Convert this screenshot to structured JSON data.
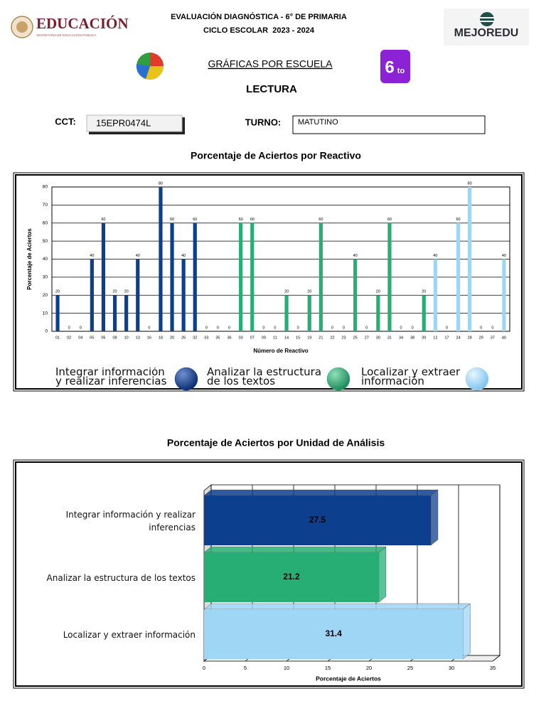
{
  "header": {
    "logo_left": "EDUCACIÓN",
    "logo_left_sub": "SECRETARÍA DE EDUCACIÓN PÚBLICA",
    "title": "EVALUACIÓN DIAGNÓSTICA - 6° DE PRIMARIA",
    "subtitle": "CICLO ESCOLAR  2023 - 2024",
    "logo_right": "MEJOREDU",
    "section": "GRÁFICAS POR ESCUELA",
    "subject": "LECTURA",
    "grade": "6",
    "grade_suffix": "to"
  },
  "form": {
    "cct_label": "CCT:",
    "cct": "15EPR0474L",
    "turno_label": "TURNO:",
    "turno": "MATUTINO"
  },
  "chart_data": [
    {
      "type": "bar",
      "title": "Porcentaje de Aciertos por Reactivo",
      "xlabel": "Número de Reactivo",
      "ylabel": "Porcentaje de Aciertos",
      "categories": [
        "01",
        "02",
        "04",
        "05",
        "06",
        "08",
        "10",
        "13",
        "16",
        "18",
        "20",
        "26",
        "32",
        "33",
        "35",
        "36",
        "03",
        "07",
        "09",
        "11",
        "14",
        "15",
        "19",
        "21",
        "22",
        "23",
        "25",
        "27",
        "30",
        "31",
        "34",
        "38",
        "39",
        "12",
        "17",
        "24",
        "28",
        "29",
        "37",
        "40"
      ],
      "series": [
        {
          "name": "Integrar información y realizar inferencias",
          "color": "#0d3f8f",
          "values": [
            20,
            0,
            0,
            40,
            60,
            20,
            20,
            40,
            0,
            80,
            60,
            40,
            60,
            0,
            0,
            0,
            null,
            null,
            null,
            null,
            null,
            null,
            null,
            null,
            null,
            null,
            null,
            null,
            null,
            null,
            null,
            null,
            null,
            null,
            null,
            null,
            null,
            null,
            null,
            null
          ]
        },
        {
          "name": "Analizar la estructura de los textos",
          "color": "#27ae74",
          "values": [
            null,
            null,
            null,
            null,
            null,
            null,
            null,
            null,
            null,
            null,
            null,
            null,
            null,
            null,
            null,
            null,
            60,
            60,
            0,
            0,
            20,
            0,
            20,
            60,
            0,
            0,
            40,
            0,
            20,
            60,
            0,
            0,
            20,
            null,
            null,
            null,
            null,
            null,
            null,
            null
          ]
        },
        {
          "name": "Localizar y extraer información",
          "color": "#9fd5f5",
          "values": [
            null,
            null,
            null,
            null,
            null,
            null,
            null,
            null,
            null,
            null,
            null,
            null,
            null,
            null,
            null,
            null,
            null,
            null,
            null,
            null,
            null,
            null,
            null,
            null,
            null,
            null,
            null,
            null,
            null,
            null,
            null,
            null,
            null,
            40,
            0,
            60,
            80,
            0,
            0,
            40
          ]
        }
      ],
      "ylim": [
        0,
        80
      ],
      "yticks": [
        0,
        10,
        20,
        30,
        40,
        50,
        60,
        70,
        80
      ],
      "grid": true,
      "value_labels_shown": true
    },
    {
      "type": "barh",
      "title": "Porcentaje de Aciertos por Unidad de Análisis",
      "xlabel": "Porcentaje de Aciertos",
      "categories": [
        "Integrar información y realizar inferencias",
        "Analizar la estructura de los textos",
        "Localizar y extraer información"
      ],
      "values": [
        27.5,
        21.2,
        31.4
      ],
      "colors": [
        "#0d3f8f",
        "#27ae74",
        "#9fd5f5"
      ],
      "xlim": [
        0,
        35
      ],
      "xticks": [
        0,
        5,
        10,
        15,
        20,
        25,
        30,
        35
      ],
      "grid": true,
      "value_labels_shown": true
    }
  ]
}
